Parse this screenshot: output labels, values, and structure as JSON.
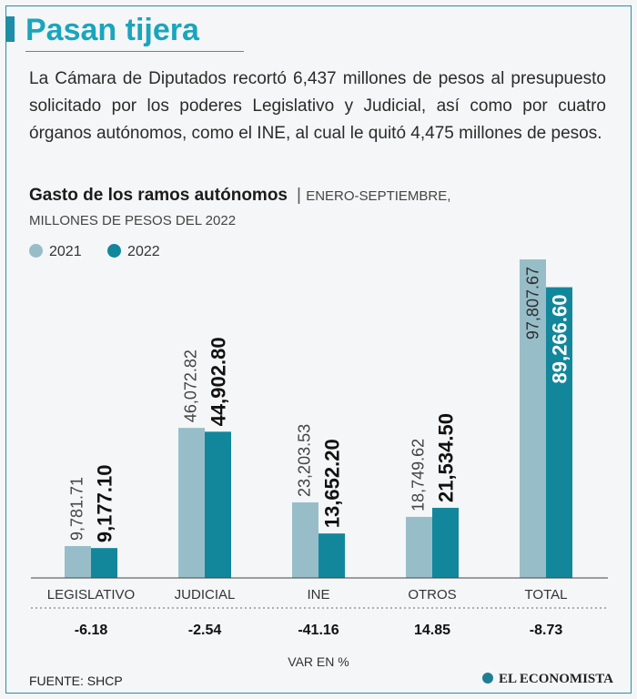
{
  "header": {
    "title": "Pasan tijera",
    "intro": "La Cámara de Diputados recortó  6,437 millones de pesos al presupuesto solicitado por los poderes Legislativo y Judicial, así como por cuatro órganos autónomos, como el INE, al cual le quitó 4,475 millones de pesos."
  },
  "subtitle": {
    "title": "Gasto de los ramos autónomos",
    "separator": "|",
    "range": "ENERO-SEPTIEMBRE,",
    "units": "MILLONES DE PESOS DEL 2022"
  },
  "colors": {
    "y2021": "#97bec8",
    "y2022": "#12879c",
    "accent": "#1aa5bd"
  },
  "chart_data": {
    "type": "bar",
    "categories": [
      "LEGISLATIVO",
      "JUDICIAL",
      "INE",
      "OTROS",
      "TOTAL"
    ],
    "series": [
      {
        "name": "2021",
        "values": [
          9781.71,
          46072.82,
          23203.53,
          18749.62,
          97807.67
        ],
        "labels": [
          "9,781.71",
          "46,072.82",
          "23,203.53",
          "18,749.62",
          "97,807.67"
        ]
      },
      {
        "name": "2022",
        "values": [
          9177.1,
          44902.8,
          13652.2,
          21534.5,
          89266.6
        ],
        "labels": [
          "9,177.10",
          "44,902.80",
          "13,652.20",
          "21,534.50",
          "89,266.60"
        ]
      }
    ],
    "variation": [
      "-6.18",
      "-2.54",
      "-41.16",
      "14.85",
      "-8.73"
    ],
    "variation_label": "VAR EN %",
    "ylim": [
      0,
      100000
    ],
    "title": "Gasto de los ramos autónomos",
    "xlabel": "",
    "ylabel": ""
  },
  "footer": {
    "source": "FUENTE: SHCP",
    "brand": "EL ECONOMISTA"
  }
}
